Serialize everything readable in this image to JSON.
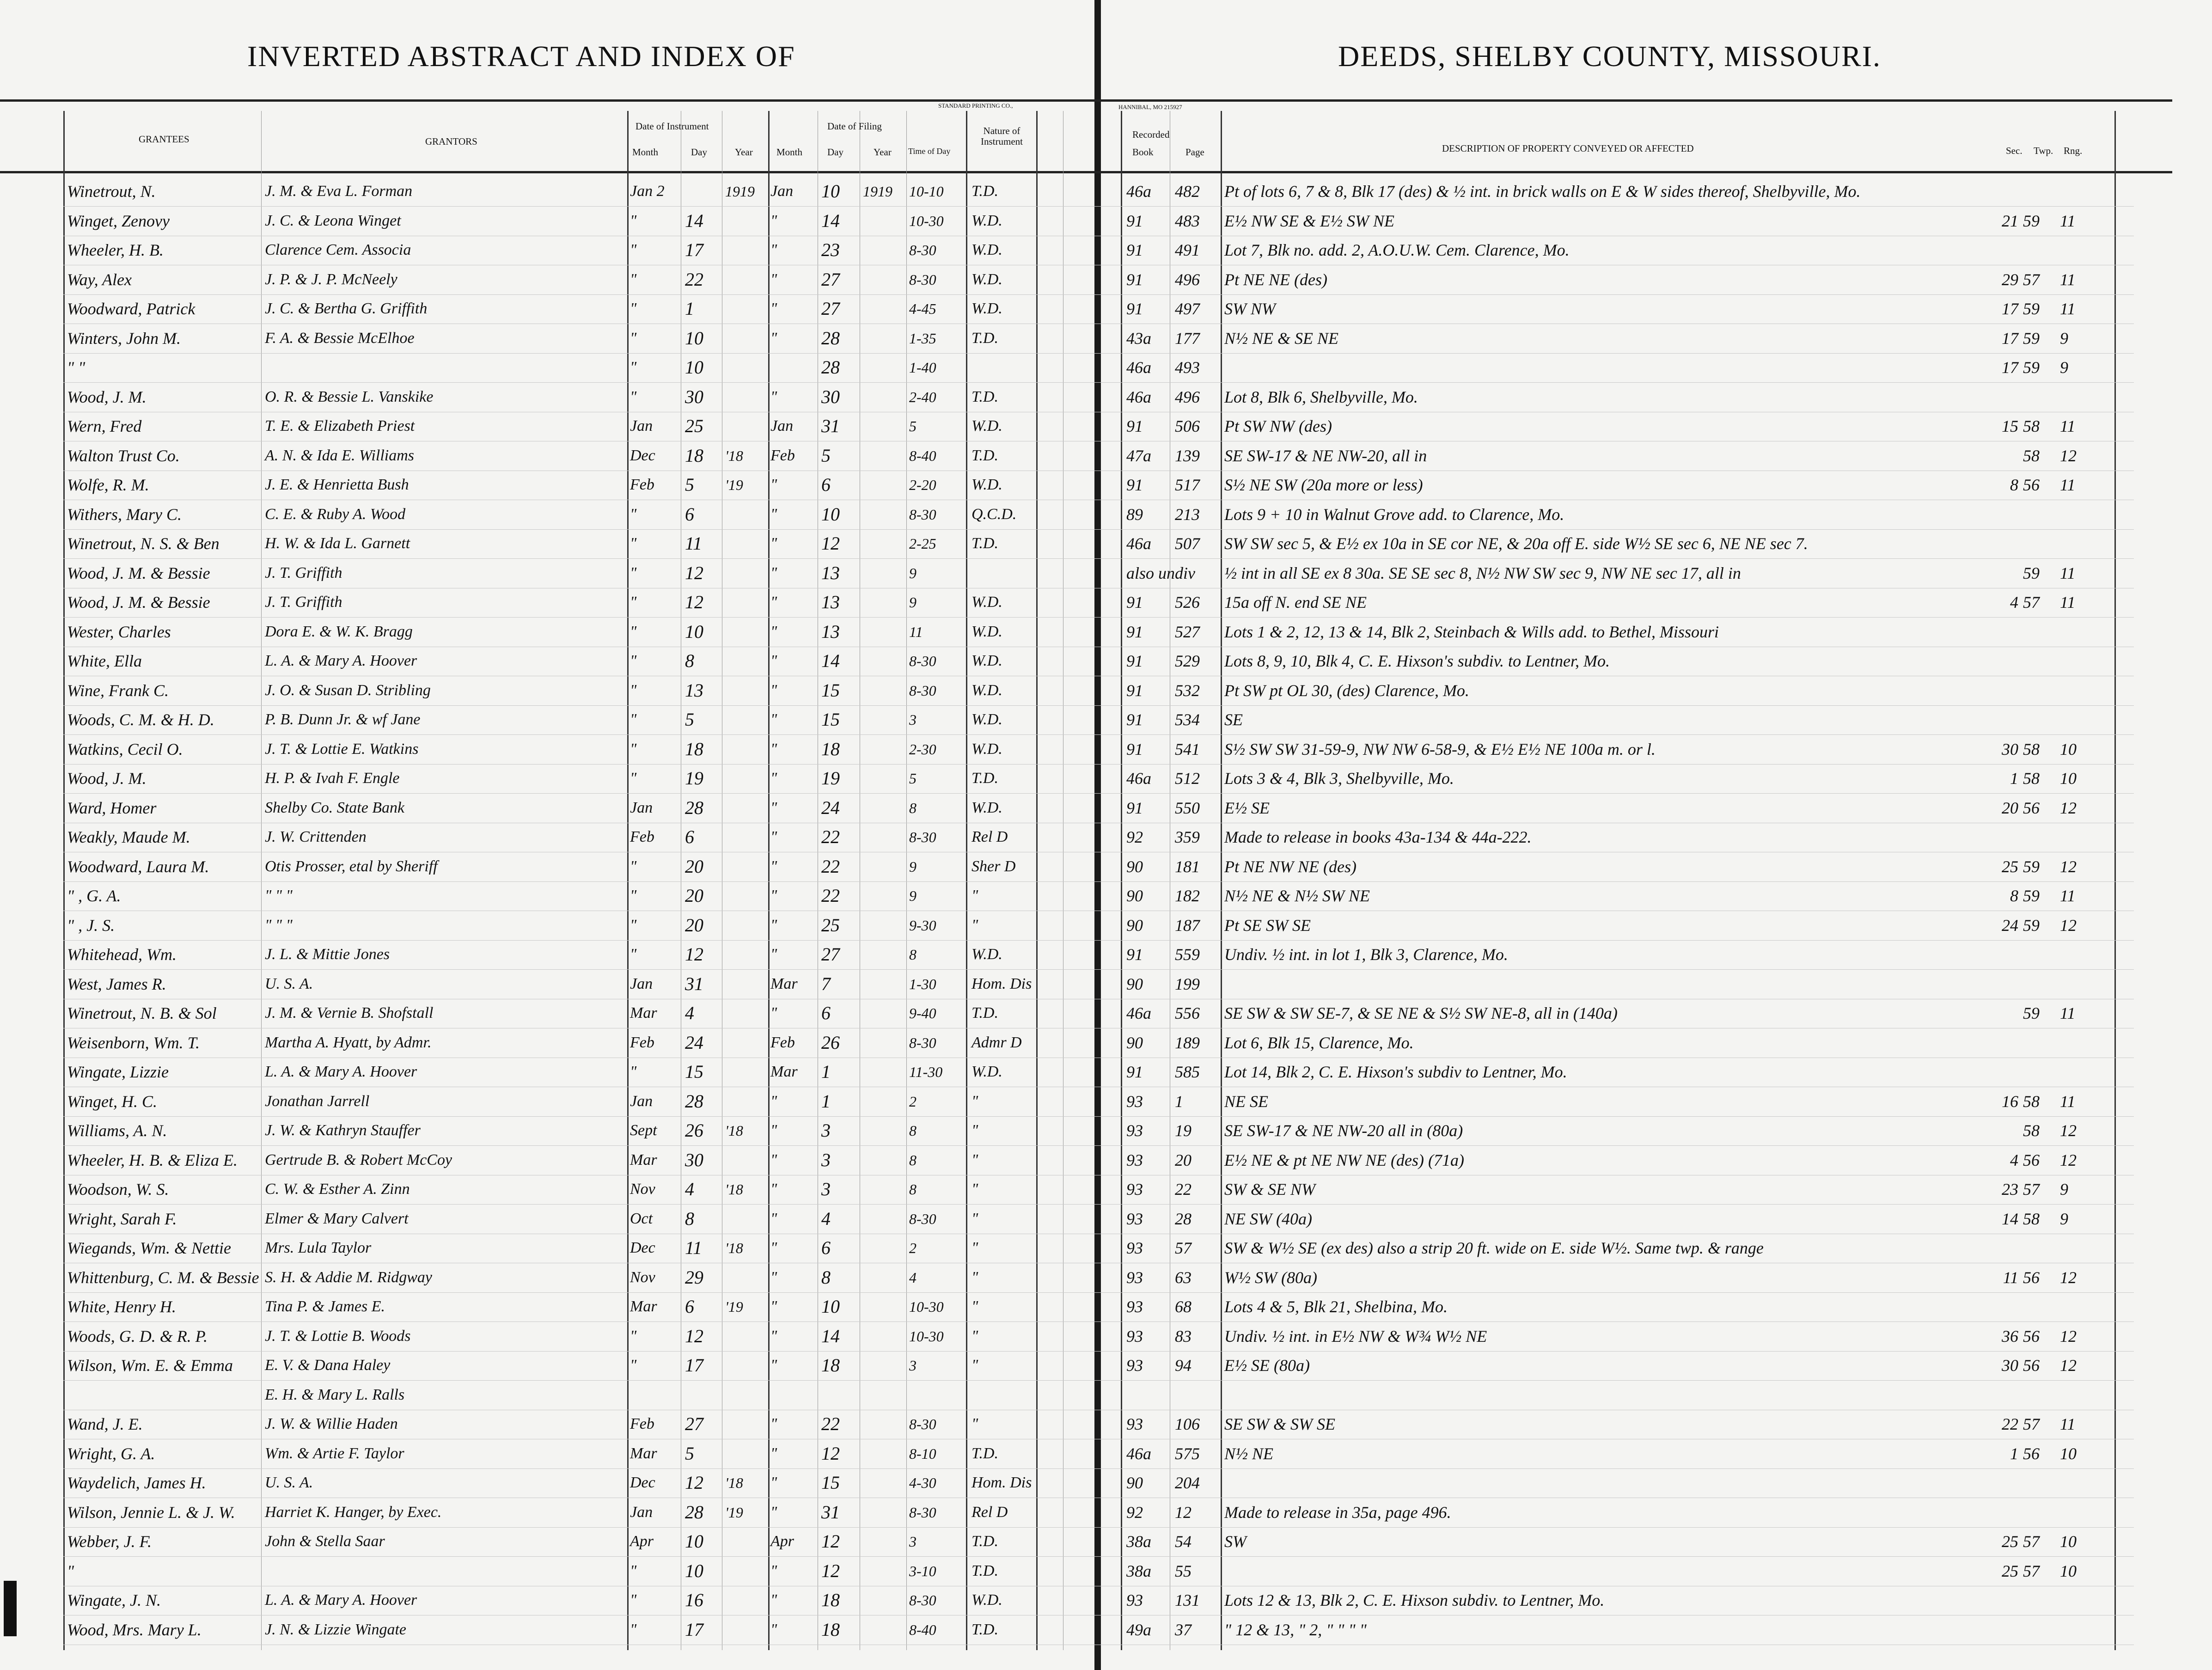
{
  "titles": {
    "left": "INVERTED ABSTRACT AND INDEX OF",
    "right": "DEEDS, SHELBY COUNTY, MISSOURI."
  },
  "printer": {
    "left": "STANDARD PRINTING CO.,",
    "right": "HANNIBAL, MO 215927"
  },
  "header": {
    "grantees": "GRANTEES",
    "grantors": "GRANTORS",
    "date_of_instrument": "Date of Instrument",
    "date_of_filing": "Date of Filing",
    "month": "Month",
    "day": "Day",
    "year": "Year",
    "time_of_day": "Time of Day",
    "nature": "Nature of Instrument",
    "recorded": "Recorded",
    "book": "Book",
    "page": "Page",
    "description": "DESCRIPTION OF PROPERTY CONVEYED OR AFFECTED",
    "sec": "Sec.",
    "twp": "Twp.",
    "rng": "Rng."
  },
  "rows": [
    [
      "Winetrout, N.",
      "J. M. & Eva L. Forman",
      "Jan 2",
      "",
      "1919",
      "Jan",
      "10",
      "1919",
      "10-10",
      "T.D.",
      "46a",
      "482",
      "Pt of lots 6, 7 & 8, Blk 17 (des) & ½ int. in brick walls on E & W sides thereof, Shelbyville, Mo.",
      "",
      "",
      ""
    ],
    [
      "Winget, Zenovy",
      "J. C. & Leona Winget",
      "\"",
      "14",
      "",
      "\"",
      "14",
      "",
      "10-30",
      "W.D.",
      "91",
      "483",
      "E½ NW SE & E½ SW NE",
      "21",
      "59",
      "11"
    ],
    [
      "Wheeler, H. B.",
      "Clarence Cem. Associa",
      "\"",
      "17",
      "",
      "\"",
      "23",
      "",
      "8-30",
      "W.D.",
      "91",
      "491",
      "Lot 7, Blk no. add. 2, A.O.U.W. Cem. Clarence, Mo.",
      "",
      "",
      ""
    ],
    [
      "Way, Alex",
      "J. P. & J. P. McNeely",
      "\"",
      "22",
      "",
      "\"",
      "27",
      "",
      "8-30",
      "W.D.",
      "91",
      "496",
      "Pt NE NE (des)",
      "29",
      "57",
      "11"
    ],
    [
      "Woodward, Patrick",
      "J. C. & Bertha G. Griffith",
      "\"",
      "1",
      "",
      "\"",
      "27",
      "",
      "4-45",
      "W.D.",
      "91",
      "497",
      "SW NW",
      "17",
      "59",
      "11"
    ],
    [
      "Winters, John M.",
      "F. A. & Bessie McElhoe",
      "\"",
      "10",
      "",
      "\"",
      "28",
      "",
      "1-35",
      "T.D.",
      "43a",
      "177",
      "N½ NE & SE NE",
      "17",
      "59",
      "9"
    ],
    [
      "\"   \"",
      "",
      "\"",
      "10",
      "",
      "",
      "28",
      "",
      "1-40",
      "",
      "46a",
      "493",
      "",
      "17",
      "59",
      "9"
    ],
    [
      "Wood, J. M.",
      "O. R. & Bessie L. Vanskike",
      "\"",
      "30",
      "",
      "\"",
      "30",
      "",
      "2-40",
      "T.D.",
      "46a",
      "496",
      "Lot 8, Blk 6, Shelbyville, Mo.",
      "",
      "",
      ""
    ],
    [
      "Wern, Fred",
      "T. E. & Elizabeth Priest",
      "Jan",
      "25",
      "",
      "Jan",
      "31",
      "",
      "5",
      "W.D.",
      "91",
      "506",
      "Pt SW NW (des)",
      "15",
      "58",
      "11"
    ],
    [
      "Walton Trust Co.",
      "A. N. & Ida E. Williams",
      "Dec",
      "18",
      "'18",
      "Feb",
      "5",
      "",
      "8-40",
      "T.D.",
      "47a",
      "139",
      "SE SW-17 & NE NW-20, all in",
      "",
      "58",
      "12"
    ],
    [
      "Wolfe, R. M.",
      "J. E. & Henrietta Bush",
      "Feb",
      "5",
      "'19",
      "\"",
      "6",
      "",
      "2-20",
      "W.D.",
      "91",
      "517",
      "S½ NE SW (20a more or less)",
      "8",
      "56",
      "11"
    ],
    [
      "Withers, Mary C.",
      "C. E. & Ruby A. Wood",
      "\"",
      "6",
      "",
      "\"",
      "10",
      "",
      "8-30",
      "Q.C.D.",
      "89",
      "213",
      "Lots 9 + 10 in Walnut Grove add. to Clarence, Mo.",
      "",
      "",
      ""
    ],
    [
      "Winetrout, N. S. & Ben",
      "H. W. & Ida L. Garnett",
      "\"",
      "11",
      "",
      "\"",
      "12",
      "",
      "2-25",
      "T.D.",
      "46a",
      "507",
      "SW SW sec 5, & E½ ex 10a in SE cor NE, & 20a off E. side W½ SE sec 6, NE NE sec 7.",
      "",
      "",
      ""
    ],
    [
      "Wood, J. M. & Bessie",
      "J. T. Griffith",
      "\"",
      "12",
      "",
      "\"",
      "13",
      "",
      "9",
      "",
      "also undiv",
      "",
      "½ int in all SE ex 8 30a. SE SE sec 8, N½ NW SW sec 9, NW NE sec 17, all in",
      "",
      "59",
      "11"
    ],
    [
      "Wood, J. M. & Bessie",
      "J. T. Griffith",
      "\"",
      "12",
      "",
      "\"",
      "13",
      "",
      "9",
      "W.D.",
      "91",
      "526",
      "15a off N. end SE NE",
      "4",
      "57",
      "11"
    ],
    [
      "Wester, Charles",
      "Dora E. & W. K. Bragg",
      "\"",
      "10",
      "",
      "\"",
      "13",
      "",
      "11",
      "W.D.",
      "91",
      "527",
      "Lots 1 & 2, 12, 13 & 14, Blk 2, Steinbach & Wills add. to Bethel, Missouri",
      "",
      "",
      ""
    ],
    [
      "White, Ella",
      "L. A. & Mary A. Hoover",
      "\"",
      "8",
      "",
      "\"",
      "14",
      "",
      "8-30",
      "W.D.",
      "91",
      "529",
      "Lots 8, 9, 10, Blk 4, C. E. Hixson's subdiv. to Lentner, Mo.",
      "",
      "",
      ""
    ],
    [
      "Wine, Frank C.",
      "J. O. & Susan D. Stribling",
      "\"",
      "13",
      "",
      "\"",
      "15",
      "",
      "8-30",
      "W.D.",
      "91",
      "532",
      "Pt SW pt OL 30, (des) Clarence, Mo.",
      "",
      "",
      ""
    ],
    [
      "Woods, C. M. & H. D.",
      "P. B. Dunn Jr. & wf Jane",
      "\"",
      "5",
      "",
      "\"",
      "15",
      "",
      "3",
      "W.D.",
      "91",
      "534",
      "SE",
      "",
      "",
      ""
    ],
    [
      "Watkins, Cecil O.",
      "J. T. & Lottie E. Watkins",
      "\"",
      "18",
      "",
      "\"",
      "18",
      "",
      "2-30",
      "W.D.",
      "91",
      "541",
      "S½ SW SW 31-59-9, NW NW 6-58-9, & E½ E½ NE   100a m. or l.",
      "30",
      "58",
      "10"
    ],
    [
      "Wood, J. M.",
      "H. P. & Ivah F. Engle",
      "\"",
      "19",
      "",
      "\"",
      "19",
      "",
      "5",
      "T.D.",
      "46a",
      "512",
      "Lots 3 & 4, Blk 3, Shelbyville, Mo.",
      "1",
      "58",
      "10"
    ],
    [
      "Ward, Homer",
      "Shelby Co. State Bank",
      "Jan",
      "28",
      "",
      "\"",
      "24",
      "",
      "8",
      "W.D.",
      "91",
      "550",
      "E½ SE",
      "20",
      "56",
      "12"
    ],
    [
      "Weakly, Maude M.",
      "J. W. Crittenden",
      "Feb",
      "6",
      "",
      "\"",
      "22",
      "",
      "8-30",
      "Rel D",
      "92",
      "359",
      "Made to release in books 43a-134 & 44a-222.",
      "",
      "",
      ""
    ],
    [
      "Woodward, Laura M.",
      "Otis Prosser, etal by Sheriff",
      "\"",
      "20",
      "",
      "\"",
      "22",
      "",
      "9",
      "Sher D",
      "90",
      "181",
      "Pt NE NW NE (des)",
      "25",
      "59",
      "12"
    ],
    [
      "\"   , G. A.",
      "\"   \"   \"",
      "\"",
      "20",
      "",
      "\"",
      "22",
      "",
      "9",
      "\"",
      "90",
      "182",
      "N½ NE & N½ SW NE",
      "8",
      "59",
      "11"
    ],
    [
      "\"   , J. S.",
      "\"   \"   \"",
      "\"",
      "20",
      "",
      "\"",
      "25",
      "",
      "9-30",
      "\"",
      "90",
      "187",
      "Pt SE SW SE",
      "24",
      "59",
      "12"
    ],
    [
      "Whitehead, Wm.",
      "J. L. & Mittie Jones",
      "\"",
      "12",
      "",
      "\"",
      "27",
      "",
      "8",
      "W.D.",
      "91",
      "559",
      "Undiv. ½ int. in lot 1, Blk 3, Clarence, Mo.",
      "",
      "",
      ""
    ],
    [
      "West, James R.",
      "U. S. A.",
      "Jan",
      "31",
      "",
      "Mar",
      "7",
      "",
      "1-30",
      "Hom. Dis",
      "90",
      "199",
      "",
      "",
      "",
      ""
    ],
    [
      "Winetrout, N. B. & Sol",
      "J. M. & Vernie B. Shofstall",
      "Mar",
      "4",
      "",
      "\"",
      "6",
      "",
      "9-40",
      "T.D.",
      "46a",
      "556",
      "SE SW & SW SE-7, & SE NE & S½ SW NE-8, all in  (140a)",
      "",
      "59",
      "11"
    ],
    [
      "Weisenborn, Wm. T.",
      "Martha A. Hyatt, by Admr.",
      "Feb",
      "24",
      "",
      "Feb",
      "26",
      "",
      "8-30",
      "Admr D",
      "90",
      "189",
      "Lot 6, Blk 15, Clarence, Mo.",
      "",
      "",
      ""
    ],
    [
      "Wingate, Lizzie",
      "L. A. & Mary A. Hoover",
      "\"",
      "15",
      "",
      "Mar",
      "1",
      "",
      "11-30",
      "W.D.",
      "91",
      "585",
      "Lot 14, Blk 2, C. E. Hixson's subdiv to Lentner, Mo.",
      "",
      "",
      ""
    ],
    [
      "Winget, H. C.",
      "Jonathan Jarrell",
      "Jan",
      "28",
      "",
      "\"",
      "1",
      "",
      "2",
      "\"",
      "93",
      "1",
      "NE SE",
      "16",
      "58",
      "11"
    ],
    [
      "Williams, A. N.",
      "J. W. & Kathryn Stauffer",
      "Sept",
      "26",
      "'18",
      "\"",
      "3",
      "",
      "8",
      "\"",
      "93",
      "19",
      "SE SW-17 & NE NW-20 all in   (80a)",
      "",
      "58",
      "12"
    ],
    [
      "Wheeler, H. B. & Eliza E.",
      "Gertrude B. & Robert McCoy",
      "Mar",
      "30",
      "",
      "\"",
      "3",
      "",
      "8",
      "\"",
      "93",
      "20",
      "E½ NE & pt NE NW NE (des)   (71a)",
      "4",
      "56",
      "12"
    ],
    [
      "Woodson, W. S.",
      "C. W. & Esther A. Zinn",
      "Nov",
      "4",
      "'18",
      "\"",
      "3",
      "",
      "8",
      "\"",
      "93",
      "22",
      "SW & SE NW",
      "23",
      "57",
      "9"
    ],
    [
      "Wright, Sarah F.",
      "Elmer & Mary Calvert",
      "Oct",
      "8",
      "",
      "\"",
      "4",
      "",
      "8-30",
      "\"",
      "93",
      "28",
      "NE SW   (40a)",
      "14",
      "58",
      "9"
    ],
    [
      "Wiegands, Wm. & Nettie",
      "Mrs. Lula Taylor",
      "Dec",
      "11",
      "'18",
      "\"",
      "6",
      "",
      "2",
      "\"",
      "93",
      "57",
      "SW & W½ SE (ex des) also a strip 20 ft. wide on E. side W½. Same twp. & range",
      "",
      "",
      ""
    ],
    [
      "Whittenburg, C. M. & Bessie",
      "S. H. & Addie M. Ridgway",
      "Nov",
      "29",
      "",
      "\"",
      "8",
      "",
      "4",
      "\"",
      "93",
      "63",
      "W½ SW   (80a)",
      "11",
      "56",
      "12"
    ],
    [
      "White, Henry H.",
      "Tina P. & James E.",
      "Mar",
      "6",
      "'19",
      "\"",
      "10",
      "",
      "10-30",
      "\"",
      "93",
      "68",
      "Lots 4 & 5, Blk 21, Shelbina, Mo.",
      "",
      "",
      ""
    ],
    [
      "Woods, G. D. & R. P.",
      "J. T. & Lottie B. Woods",
      "\"",
      "12",
      "",
      "\"",
      "14",
      "",
      "10-30",
      "\"",
      "93",
      "83",
      "Undiv. ½ int. in E½ NW & W¾ W½ NE",
      "36",
      "56",
      "12"
    ],
    [
      "Wilson, Wm. E. & Emma",
      "E. V. & Dana Haley",
      "\"",
      "17",
      "",
      "\"",
      "18",
      "",
      "3",
      "\"",
      "93",
      "94",
      "E½ SE   (80a)",
      "30",
      "56",
      "12"
    ],
    [
      "",
      "E. H. & Mary L. Ralls",
      "",
      "",
      "",
      "",
      "",
      "",
      "",
      "",
      "",
      "",
      "",
      "",
      "",
      ""
    ],
    [
      "Wand, J. E.",
      "J. W. & Willie Haden",
      "Feb",
      "27",
      "",
      "\"",
      "22",
      "",
      "8-30",
      "\"",
      "93",
      "106",
      "SE SW & SW SE",
      "22",
      "57",
      "11"
    ],
    [
      "Wright, G. A.",
      "Wm. & Artie F. Taylor",
      "Mar",
      "5",
      "",
      "\"",
      "12",
      "",
      "8-10",
      "T.D.",
      "46a",
      "575",
      "N½ NE",
      "1",
      "56",
      "10"
    ],
    [
      "Waydelich, James H.",
      "U. S. A.",
      "Dec",
      "12",
      "'18",
      "\"",
      "15",
      "",
      "4-30",
      "Hom. Dis",
      "90",
      "204",
      "",
      "",
      "",
      ""
    ],
    [
      "Wilson, Jennie L. & J. W.",
      "Harriet K. Hanger, by Exec.",
      "Jan",
      "28",
      "'19",
      "\"",
      "31",
      "",
      "8-30",
      "Rel D",
      "92",
      "12",
      "Made to release in 35a, page 496.",
      "",
      "",
      ""
    ],
    [
      "Webber, J. F.",
      "John & Stella Saar",
      "Apr",
      "10",
      "",
      "Apr",
      "12",
      "",
      "3",
      "T.D.",
      "38a",
      "54",
      "SW",
      "25",
      "57",
      "10"
    ],
    [
      "\"",
      "",
      "\"",
      "10",
      "",
      "\"",
      "12",
      "",
      "3-10",
      "T.D.",
      "38a",
      "55",
      "",
      "25",
      "57",
      "10"
    ],
    [
      "Wingate, J. N.",
      "L. A. & Mary A. Hoover",
      "\"",
      "16",
      "",
      "\"",
      "18",
      "",
      "8-30",
      "W.D.",
      "93",
      "131",
      "Lots 12 & 13, Blk 2, C. E. Hixson subdiv. to Lentner, Mo.",
      "",
      "",
      ""
    ],
    [
      "Wood, Mrs. Mary L.",
      "J. N. & Lizzie Wingate",
      "\"",
      "17",
      "",
      "\"",
      "18",
      "",
      "8-40",
      "T.D.",
      "49a",
      "37",
      "\" 12 & 13, \" 2, \"   \"   \"   \"",
      "",
      "",
      ""
    ]
  ]
}
